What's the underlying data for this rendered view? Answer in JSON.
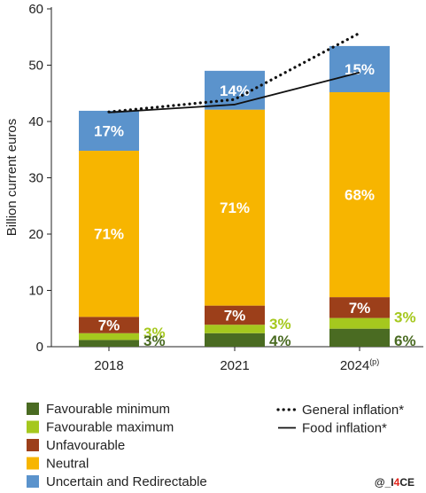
{
  "chart_data": {
    "type": "stacked_bar",
    "categories": [
      "2018",
      "2021",
      "2024"
    ],
    "category_superscripts": [
      "",
      "",
      "(p)"
    ],
    "ylabel": "Billion current euros",
    "ylim": [
      0,
      60
    ],
    "yticks": [
      0,
      10,
      20,
      30,
      40,
      50,
      60
    ],
    "series": [
      {
        "name": "Favourable minimum",
        "color": "#4a6b22",
        "values": [
          1.2,
          2.4,
          3.2
        ]
      },
      {
        "name": "Favourable maximum",
        "color": "#a5c81e",
        "values": [
          1.2,
          1.5,
          1.9
        ]
      },
      {
        "name": "Unfavourable",
        "color": "#9c3f1a",
        "values": [
          2.9,
          3.4,
          3.7
        ]
      },
      {
        "name": "Neutral",
        "color": "#f7b500",
        "values": [
          29.5,
          34.8,
          36.4
        ]
      },
      {
        "name": "Uncertain and Redirectable",
        "color": "#5b93cc",
        "values": [
          7.1,
          6.9,
          8.2
        ]
      }
    ],
    "labels_inside": [
      {
        "series": "Unfavourable",
        "values": [
          "7%",
          "7%",
          "7%"
        ]
      },
      {
        "series": "Uncertain and Redirectable",
        "values": [
          "17%",
          "14%",
          "15%"
        ]
      },
      {
        "series": "Neutral",
        "values": [
          "71%",
          "71%",
          "68%"
        ]
      }
    ],
    "labels_outside": [
      {
        "series": "Favourable maximum",
        "values": [
          "3%",
          "3%",
          "3%"
        ]
      },
      {
        "series": "Favourable minimum",
        "values": [
          "3%",
          "4%",
          "6%"
        ]
      }
    ],
    "lines": [
      {
        "name": "General inflation*",
        "style": "dotted",
        "x": [
          "2018",
          "2019.5",
          "2021",
          "2024"
        ],
        "values": [
          41.7,
          42.8,
          43.9,
          55.7
        ]
      },
      {
        "name": "Food inflation*",
        "style": "solid",
        "x": [
          "2018",
          "2019.5",
          "2021",
          "2024"
        ],
        "values": [
          41.6,
          42.3,
          43.0,
          48.7
        ]
      }
    ],
    "legend_position": "bottom",
    "grid": false
  },
  "credit": {
    "prefix": "@_I",
    "accent": "4",
    "suffix": "CE"
  }
}
